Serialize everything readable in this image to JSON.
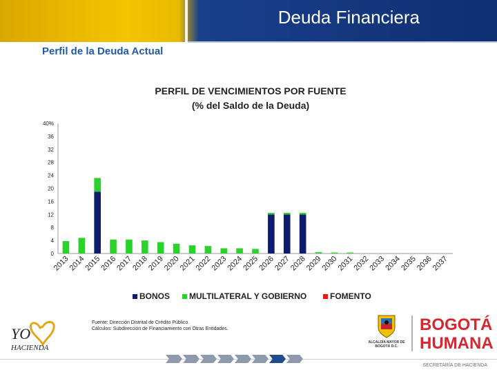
{
  "header": {
    "title": "Deuda Financiera"
  },
  "subtitle": "Perfil de la Deuda Actual",
  "chart_data": {
    "type": "bar",
    "stacked": true,
    "title_line1": "PERFIL DE VENCIMIENTOS POR FUENTE",
    "title_line2": "(% del Saldo de la Deuda)",
    "ylim": [
      0,
      40
    ],
    "yticks": [
      "0",
      "4",
      "8",
      "12",
      "16",
      "20",
      "24",
      "28",
      "32",
      "36",
      "40%"
    ],
    "ytick_values": [
      0,
      4,
      8,
      12,
      16,
      20,
      24,
      28,
      32,
      36,
      40
    ],
    "categories": [
      "2013",
      "2014",
      "2015",
      "2016",
      "2017",
      "2018",
      "2019",
      "2020",
      "2021",
      "2022",
      "2023",
      "2024",
      "2025",
      "2026",
      "2027",
      "2028",
      "2029",
      "2030",
      "2031",
      "2032",
      "2033",
      "2034",
      "2035",
      "2036",
      "2037"
    ],
    "series": [
      {
        "name": "BONOS",
        "color": "#0d1d6b",
        "values": [
          0,
          0,
          19,
          0,
          0,
          0,
          0,
          0,
          0,
          0,
          0,
          0,
          0,
          12,
          12,
          12,
          0,
          0,
          0,
          0,
          0,
          0,
          0,
          0,
          0
        ]
      },
      {
        "name": "MULTILATERAL Y GOBIERNO",
        "color": "#2bd22b",
        "values": [
          3.8,
          4.8,
          4.2,
          4.3,
          4.3,
          4.0,
          3.5,
          3.0,
          2.5,
          2.3,
          1.6,
          1.6,
          1.4,
          0.5,
          0.5,
          0.5,
          0.4,
          0.3,
          0.3,
          0,
          0,
          0,
          0,
          0,
          0
        ]
      },
      {
        "name": "FOMENTO",
        "color": "#e31a1a",
        "values": [
          0,
          0,
          0,
          0,
          0,
          0,
          0,
          0,
          0,
          0,
          0,
          0,
          0,
          0,
          0,
          0,
          0,
          0,
          0,
          0,
          0,
          0,
          0,
          0,
          0
        ]
      }
    ],
    "legend_position": "bottom",
    "grid": false
  },
  "source": {
    "line1": "Fuente: Dirección Distrital de Crédito Público.",
    "line2": "Cálculos: Subdirección de Financiamiento con Otras Entidades."
  },
  "logos": {
    "left_main": "YO",
    "left_sub": "HACIENDA",
    "crest_text": "ALCALDÍA MAYOR DE BOGOTÁ D.C.",
    "bogota_line1": "BOGOTÁ",
    "bogota_line2": "HUMANA"
  },
  "footer": {
    "text": "SECRETARÍA DE HACIENDA",
    "steps_total": 8,
    "active_step": 7
  },
  "colors": {
    "accent_blue": "#1f5aa8",
    "header_navy": "#0e2f72",
    "header_gold": "#f4c400"
  }
}
